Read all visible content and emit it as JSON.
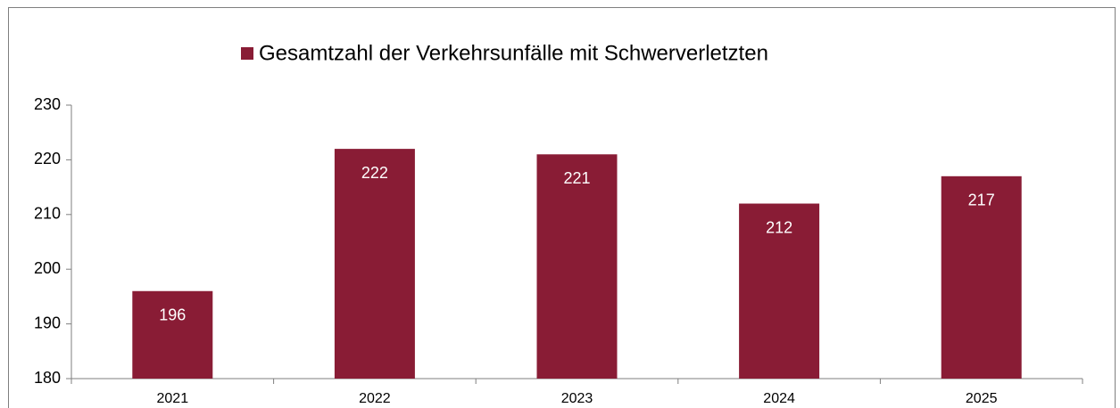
{
  "chart_data": {
    "type": "bar",
    "categories": [
      "2021",
      "2022",
      "2023",
      "2024",
      "2025"
    ],
    "series": [
      {
        "name": "Gesamtzahl der Verkehrsunfälle mit Schwerverletzten",
        "color": "#891c35",
        "values": [
          196,
          222,
          221,
          212,
          217
        ]
      }
    ],
    "ylim": [
      180,
      230
    ],
    "yticks": [
      180,
      190,
      200,
      210,
      220,
      230
    ],
    "grid": false,
    "legend": "top"
  }
}
